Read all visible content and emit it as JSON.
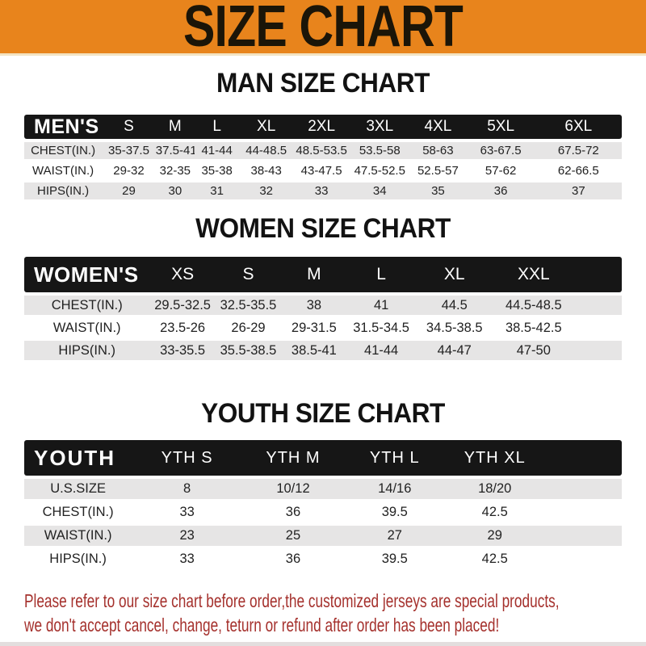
{
  "banner": {
    "title": "SIZE CHART"
  },
  "sections": [
    {
      "id": "men",
      "title": "MAN SIZE CHART",
      "group_label": "MEN'S",
      "columns": [
        "S",
        "M",
        "L",
        "XL",
        "2XL",
        "3XL",
        "4XL",
        "5XL",
        "6XL"
      ],
      "rows": [
        {
          "label": "CHEST(IN.)",
          "values": [
            "35-37.5",
            "37.5-41",
            "41-44",
            "44-48.5",
            "48.5-53.5",
            "53.5-58",
            "58-63",
            "63-67.5",
            "67.5-72"
          ]
        },
        {
          "label": "WAIST(IN.)",
          "values": [
            "29-32",
            "32-35",
            "35-38",
            "38-43",
            "43-47.5",
            "47.5-52.5",
            "52.5-57",
            "57-62",
            "62-66.5"
          ]
        },
        {
          "label": "HIPS(IN.)",
          "values": [
            "29",
            "30",
            "31",
            "32",
            "33",
            "34",
            "35",
            "36",
            "37"
          ]
        }
      ]
    },
    {
      "id": "women",
      "title": "WOMEN SIZE CHART",
      "group_label": "WOMEN'S",
      "columns": [
        "XS",
        "S",
        "M",
        "L",
        "XL",
        "XXL"
      ],
      "rows": [
        {
          "label": "CHEST(IN.)",
          "values": [
            "29.5-32.5",
            "32.5-35.5",
            "38",
            "41",
            "44.5",
            "44.5-48.5"
          ]
        },
        {
          "label": "WAIST(IN.)",
          "values": [
            "23.5-26",
            "26-29",
            "29-31.5",
            "31.5-34.5",
            "34.5-38.5",
            "38.5-42.5"
          ]
        },
        {
          "label": "HIPS(IN.)",
          "values": [
            "33-35.5",
            "35.5-38.5",
            "38.5-41",
            "41-44",
            "44-47",
            "47-50"
          ]
        }
      ]
    },
    {
      "id": "youth",
      "title": "YOUTH SIZE CHART",
      "group_label": "YOUTH",
      "columns": [
        "YTH S",
        "YTH M",
        "YTH L",
        "YTH XL"
      ],
      "rows": [
        {
          "label": "U.S.SIZE",
          "values": [
            "8",
            "10/12",
            "14/16",
            "18/20"
          ]
        },
        {
          "label": "CHEST(IN.)",
          "values": [
            "33",
            "36",
            "39.5",
            "42.5"
          ]
        },
        {
          "label": "WAIST(IN.)",
          "values": [
            "23",
            "25",
            "27",
            "29"
          ]
        },
        {
          "label": "HIPS(IN.)",
          "values": [
            "33",
            "36",
            "39.5",
            "42.5"
          ]
        }
      ]
    }
  ],
  "footer": {
    "line1": "Please refer to our size chart before order,the customized jerseys are special products,",
    "line2": "we don't accept cancel, change, teturn or refund after order has been placed!"
  },
  "colors": {
    "banner_bg": "#E8841C",
    "banner_text": "#1B1508",
    "bar_bg": "#161616",
    "bar_text": "#FFFFFF",
    "row_alt": "#E6E5E5",
    "cell_text": "#222222",
    "footer_red": "#A5312D",
    "strip_gray": "#E3DEDE"
  }
}
